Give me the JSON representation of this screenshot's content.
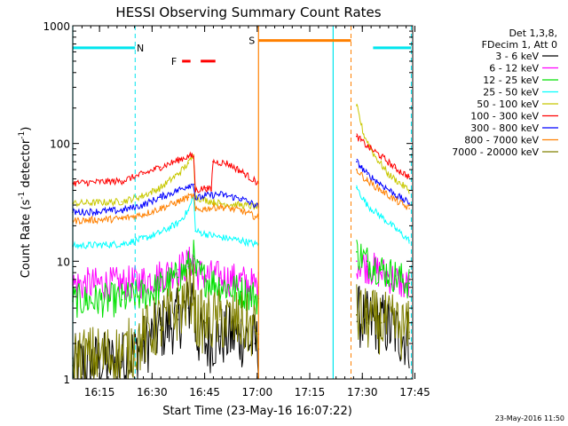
{
  "chart_data": {
    "type": "line",
    "title": "HESSI Observing Summary Count Rates",
    "xlabel": "Start Time (23-May-16 16:07:22)",
    "ylabel_parts": [
      "Count Rate (s",
      "-1",
      " detector",
      "-1",
      ")"
    ],
    "y_scale": "log",
    "ylim": [
      1,
      1000
    ],
    "y_ticks": [
      {
        "value": 1,
        "label": "1"
      },
      {
        "value": 10,
        "label": "10"
      },
      {
        "value": 100,
        "label": "100"
      },
      {
        "value": 1000,
        "label": "1000"
      }
    ],
    "x_range_minutes": [
      0,
      97
    ],
    "x_ticks": [
      {
        "minute": 7.63,
        "label": "16:15"
      },
      {
        "minute": 22.63,
        "label": "16:30"
      },
      {
        "minute": 37.63,
        "label": "16:45"
      },
      {
        "minute": 52.63,
        "label": "17:00"
      },
      {
        "minute": 67.63,
        "label": "17:15"
      },
      {
        "minute": 82.63,
        "label": "17:30"
      },
      {
        "minute": 97.63,
        "label": "17:45"
      }
    ],
    "legend": {
      "placement": "right",
      "header": [
        "Det 1,3,8,",
        "FDecim 1, Att 0"
      ],
      "entries": [
        {
          "label": "3 - 6 keV",
          "color": "#000000"
        },
        {
          "label": "6 - 12 keV",
          "color": "#ff00ff"
        },
        {
          "label": "12 - 25 keV",
          "color": "#00e000"
        },
        {
          "label": "25 - 50 keV",
          "color": "#00ffff"
        },
        {
          "label": "50 - 100 keV",
          "color": "#c8c800"
        },
        {
          "label": "100 - 300 keV",
          "color": "#ff0000"
        },
        {
          "label": "300 - 800 keV",
          "color": "#0000ff"
        },
        {
          "label": "800 - 7000 keV",
          "color": "#ff8000"
        },
        {
          "label": "7000 - 20000 keV",
          "color": "#808000"
        }
      ]
    },
    "flags": [
      {
        "label": "N",
        "color": "#00e5ee",
        "segments": [
          [
            0,
            17.8
          ],
          [
            85.7,
            96.6
          ]
        ],
        "level": 650,
        "dashed_boundaries": [
          17.8,
          96.6
        ],
        "solid_boundaries": [
          0,
          74.3
        ]
      },
      {
        "label": "F",
        "color": "#ff0000",
        "segments": [
          [
            31.2,
            33.6
          ],
          [
            36.5,
            40.7
          ]
        ],
        "level": 500
      },
      {
        "label": "S",
        "color": "#ff8000",
        "segments": [
          [
            53.0,
            79.4
          ]
        ],
        "level": 750,
        "dashed_boundaries": [
          79.4
        ],
        "solid_boundaries": [
          53.0
        ]
      }
    ],
    "segments": [
      [
        0,
        53.0
      ],
      [
        79.4,
        97
      ]
    ],
    "series": [
      {
        "name": "3 - 6 keV",
        "color": "#000000",
        "points": [
          [
            0,
            1.3
          ],
          [
            14,
            1.4
          ],
          [
            20,
            1.9
          ],
          [
            25,
            2.6
          ],
          [
            30,
            3.2
          ],
          [
            33,
            4.0
          ],
          [
            34.5,
            6
          ],
          [
            35,
            2.5
          ],
          [
            38,
            2.0
          ],
          [
            42,
            2.3
          ],
          [
            48,
            2.3
          ],
          [
            52,
            2.0
          ],
          [
            53,
            1.8
          ],
          [
            81,
            3.5
          ],
          [
            84,
            3
          ],
          [
            88,
            3
          ],
          [
            92,
            2.5
          ],
          [
            96,
            2.2
          ]
        ]
      },
      {
        "name": "6 - 12 keV",
        "color": "#ff00ff",
        "points": [
          [
            0,
            6.3
          ],
          [
            14,
            6.4
          ],
          [
            20,
            6.8
          ],
          [
            25,
            7.5
          ],
          [
            30,
            8.5
          ],
          [
            33,
            9.5
          ],
          [
            34.5,
            10.5
          ],
          [
            35,
            8
          ],
          [
            38,
            7.5
          ],
          [
            42,
            7.2
          ],
          [
            48,
            6.8
          ],
          [
            52,
            6.2
          ],
          [
            53,
            6
          ],
          [
            81,
            10
          ],
          [
            84,
            9
          ],
          [
            88,
            8
          ],
          [
            92,
            7
          ],
          [
            96,
            6
          ]
        ]
      },
      {
        "name": "12 - 25 keV",
        "color": "#00e000",
        "points": [
          [
            0,
            4.6
          ],
          [
            14,
            4.7
          ],
          [
            20,
            5.2
          ],
          [
            25,
            6
          ],
          [
            30,
            7.3
          ],
          [
            33,
            9
          ],
          [
            34.5,
            11
          ],
          [
            35,
            8
          ],
          [
            38,
            7
          ],
          [
            42,
            6.3
          ],
          [
            48,
            5.5
          ],
          [
            52,
            5
          ],
          [
            53,
            4.8
          ],
          [
            81,
            12
          ],
          [
            84,
            10
          ],
          [
            88,
            8.5
          ],
          [
            92,
            7.5
          ],
          [
            96,
            6.5
          ]
        ]
      },
      {
        "name": "25 - 50 keV",
        "color": "#00ffff",
        "points": [
          [
            0,
            13.5
          ],
          [
            14,
            14
          ],
          [
            20,
            15.5
          ],
          [
            25,
            17.5
          ],
          [
            30,
            21
          ],
          [
            33,
            27
          ],
          [
            34.5,
            36
          ],
          [
            35,
            18
          ],
          [
            38,
            17
          ],
          [
            42,
            16
          ],
          [
            48,
            15
          ],
          [
            52,
            14
          ],
          [
            53,
            14
          ],
          [
            81,
            42
          ],
          [
            84,
            30
          ],
          [
            88,
            24
          ],
          [
            92,
            19
          ],
          [
            96,
            15
          ]
        ]
      },
      {
        "name": "50 - 100 keV",
        "color": "#c8c800",
        "points": [
          [
            0,
            31
          ],
          [
            14,
            32
          ],
          [
            20,
            36
          ],
          [
            25,
            42
          ],
          [
            30,
            55
          ],
          [
            33,
            68
          ],
          [
            34.5,
            80
          ],
          [
            35,
            35
          ],
          [
            38,
            33
          ],
          [
            42,
            31
          ],
          [
            48,
            30
          ],
          [
            52,
            29
          ],
          [
            53,
            29
          ],
          [
            81,
            210
          ],
          [
            83,
            120
          ],
          [
            86,
            80
          ],
          [
            90,
            55
          ],
          [
            96,
            40
          ]
        ]
      },
      {
        "name": "100 - 300 keV",
        "color": "#ff0000",
        "points": [
          [
            0,
            46
          ],
          [
            14,
            48
          ],
          [
            20,
            55
          ],
          [
            25,
            63
          ],
          [
            30,
            72
          ],
          [
            33,
            78
          ],
          [
            34.5,
            78
          ],
          [
            35,
            40
          ],
          [
            38,
            42
          ],
          [
            39.5,
            40
          ],
          [
            40,
            70
          ],
          [
            44,
            68
          ],
          [
            48,
            58
          ],
          [
            52,
            48
          ],
          [
            53,
            46
          ],
          [
            81,
            115
          ],
          [
            84,
            95
          ],
          [
            88,
            78
          ],
          [
            92,
            62
          ],
          [
            96,
            52
          ]
        ]
      },
      {
        "name": "300 - 800 keV",
        "color": "#0000ff",
        "points": [
          [
            0,
            26
          ],
          [
            14,
            27
          ],
          [
            20,
            30
          ],
          [
            25,
            35
          ],
          [
            30,
            40
          ],
          [
            33,
            44
          ],
          [
            34.5,
            45
          ],
          [
            35,
            34
          ],
          [
            38,
            36
          ],
          [
            42,
            37
          ],
          [
            48,
            34
          ],
          [
            52,
            30
          ],
          [
            53,
            29
          ],
          [
            81,
            70
          ],
          [
            84,
            55
          ],
          [
            88,
            45
          ],
          [
            92,
            37
          ],
          [
            96,
            31
          ]
        ]
      },
      {
        "name": "800 - 7000 keV",
        "color": "#ff8000",
        "points": [
          [
            0,
            22
          ],
          [
            14,
            23
          ],
          [
            20,
            25
          ],
          [
            25,
            28
          ],
          [
            30,
            32
          ],
          [
            33,
            35
          ],
          [
            34.5,
            36
          ],
          [
            35,
            27
          ],
          [
            38,
            28
          ],
          [
            42,
            29
          ],
          [
            48,
            27
          ],
          [
            52,
            24
          ],
          [
            53,
            23
          ],
          [
            81,
            60
          ],
          [
            84,
            48
          ],
          [
            88,
            40
          ],
          [
            92,
            33
          ],
          [
            96,
            28
          ]
        ]
      },
      {
        "name": "7000 - 20000 keV",
        "color": "#808000",
        "points": [
          [
            0,
            1.5
          ],
          [
            14,
            1.6
          ],
          [
            20,
            2.2
          ],
          [
            25,
            3.0
          ],
          [
            30,
            3.8
          ],
          [
            33,
            5
          ],
          [
            34.5,
            6
          ],
          [
            35,
            3.2
          ],
          [
            38,
            3
          ],
          [
            42,
            3.2
          ],
          [
            48,
            3
          ],
          [
            52,
            2.6
          ],
          [
            53,
            2.4
          ],
          [
            81,
            3.5
          ],
          [
            84,
            3.2
          ],
          [
            88,
            3
          ],
          [
            92,
            2.8
          ],
          [
            96,
            2.5
          ]
        ]
      }
    ]
  },
  "footer": {
    "timestamp": "23-May-2016 11:50"
  }
}
